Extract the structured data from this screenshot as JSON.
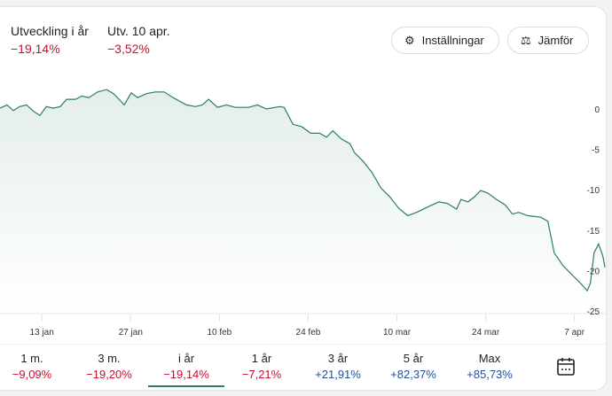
{
  "header": {
    "ytd_label": "Utveckling i år",
    "ytd_value": "−19,14%",
    "day_label": "Utv. 10 apr.",
    "day_value": "−3,52%",
    "settings_label": "Inställningar",
    "compare_label": "Jämför"
  },
  "tabs": [
    {
      "label": "1 m.",
      "value": "−9,09%",
      "sign": "neg"
    },
    {
      "label": "3 m.",
      "value": "−19,20%",
      "sign": "neg"
    },
    {
      "label": "i år",
      "value": "−19,14%",
      "sign": "neg",
      "active": true
    },
    {
      "label": "1 år",
      "value": "−7,21%",
      "sign": "neg"
    },
    {
      "label": "3 år",
      "value": "+21,91%",
      "sign": "pos"
    },
    {
      "label": "5 år",
      "value": "+82,37%",
      "sign": "pos"
    },
    {
      "label": "Max",
      "value": "+85,73%",
      "sign": "pos"
    }
  ],
  "colors": {
    "line": "#2e7d5b",
    "negative": "#c8102e",
    "positive": "#1f4f9c"
  },
  "chart_data": {
    "type": "area",
    "xlabel": "",
    "ylabel": "",
    "xlim": [
      6.4,
      101.8
    ],
    "ylim": [
      -25,
      0
    ],
    "xticks": [
      {
        "day": 13,
        "label": "13 jan"
      },
      {
        "day": 27,
        "label": "27 jan"
      },
      {
        "day": 41,
        "label": "10 feb"
      },
      {
        "day": 55,
        "label": "24 feb"
      },
      {
        "day": 69,
        "label": "10 mar"
      },
      {
        "day": 83,
        "label": "24 mar"
      },
      {
        "day": 97,
        "label": "7 apr"
      }
    ],
    "yticks": [
      {
        "v": 0,
        "label": "0"
      },
      {
        "v": -5,
        "label": "-5"
      },
      {
        "v": -10,
        "label": "-10"
      },
      {
        "v": -15,
        "label": "-15"
      },
      {
        "v": -20,
        "label": "-20"
      },
      {
        "v": -25,
        "label": "-25"
      }
    ],
    "points": [
      [
        6.4,
        0.1
      ],
      [
        7.5,
        0.5
      ],
      [
        8.5,
        -0.2
      ],
      [
        9.5,
        0.3
      ],
      [
        10.6,
        0.5
      ],
      [
        11.7,
        -0.3
      ],
      [
        12.7,
        -0.8
      ],
      [
        13.7,
        0.3
      ],
      [
        14.8,
        0.1
      ],
      [
        15.9,
        0.3
      ],
      [
        16.9,
        1.2
      ],
      [
        18.3,
        1.2
      ],
      [
        19.3,
        1.6
      ],
      [
        20.4,
        1.4
      ],
      [
        21.8,
        2.1
      ],
      [
        23.2,
        2.4
      ],
      [
        24.3,
        1.9
      ],
      [
        25.3,
        1.1
      ],
      [
        26,
        0.5
      ],
      [
        27.1,
        2
      ],
      [
        28.1,
        1.4
      ],
      [
        29.5,
        1.9
      ],
      [
        30.9,
        2.1
      ],
      [
        32.3,
        2.1
      ],
      [
        33.7,
        1.4
      ],
      [
        35.8,
        0.5
      ],
      [
        37.2,
        0.3
      ],
      [
        38.3,
        0.5
      ],
      [
        39.3,
        1.2
      ],
      [
        40.7,
        0.2
      ],
      [
        42.1,
        0.5
      ],
      [
        43.5,
        0.2
      ],
      [
        45.6,
        0.2
      ],
      [
        47,
        0.5
      ],
      [
        48.4,
        0
      ],
      [
        50.5,
        0.3
      ],
      [
        51.2,
        0.2
      ],
      [
        52.6,
        -1.9
      ],
      [
        54,
        -2.2
      ],
      [
        55.4,
        -3
      ],
      [
        56.8,
        -3
      ],
      [
        57.9,
        -3.5
      ],
      [
        58.9,
        -2.7
      ],
      [
        60.2,
        -3.7
      ],
      [
        61.6,
        -4.3
      ],
      [
        62.3,
        -5.4
      ],
      [
        63.7,
        -6.5
      ],
      [
        65.1,
        -7.9
      ],
      [
        66.5,
        -9.8
      ],
      [
        67.9,
        -10.9
      ],
      [
        69.3,
        -12.3
      ],
      [
        70.7,
        -13.2
      ],
      [
        72.1,
        -12.8
      ],
      [
        74.2,
        -12
      ],
      [
        75.6,
        -11.5
      ],
      [
        77,
        -11.7
      ],
      [
        78.4,
        -12.4
      ],
      [
        79.1,
        -11.2
      ],
      [
        80.2,
        -11.5
      ],
      [
        81.2,
        -10.9
      ],
      [
        82.2,
        -10.1
      ],
      [
        83.3,
        -10.4
      ],
      [
        84.7,
        -11.2
      ],
      [
        86.1,
        -11.9
      ],
      [
        87.2,
        -13
      ],
      [
        88.2,
        -12.8
      ],
      [
        89.6,
        -13.2
      ],
      [
        91.7,
        -13.4
      ],
      [
        92.8,
        -13.9
      ],
      [
        93.8,
        -17.8
      ],
      [
        95.2,
        -19.4
      ],
      [
        96.6,
        -20.5
      ],
      [
        98,
        -21.6
      ],
      [
        99,
        -22.5
      ],
      [
        99.5,
        -21.6
      ],
      [
        100.1,
        -17.8
      ],
      [
        100.8,
        -16.7
      ],
      [
        101.5,
        -18.3
      ],
      [
        101.8,
        -19.6
      ]
    ]
  }
}
